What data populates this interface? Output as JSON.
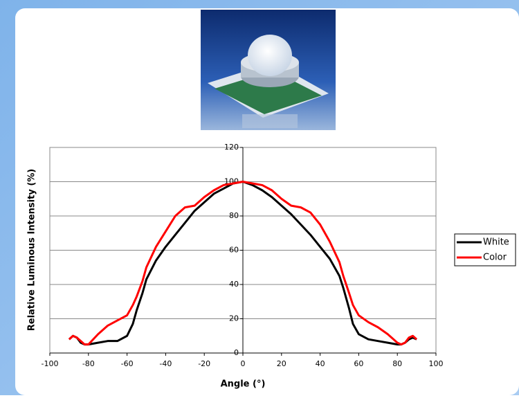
{
  "chart_data": {
    "type": "line",
    "x_label": "Angle (°)",
    "y_label": "Relative Luminous Intensity (%)",
    "x": [
      -90,
      -88,
      -86,
      -84,
      -82,
      -80,
      -75,
      -70,
      -65,
      -60,
      -57,
      -55,
      -52,
      -50,
      -45,
      -40,
      -35,
      -30,
      -25,
      -20,
      -15,
      -10,
      -5,
      0,
      5,
      10,
      15,
      20,
      25,
      30,
      35,
      40,
      45,
      50,
      52,
      55,
      57,
      60,
      65,
      70,
      75,
      80,
      82,
      84,
      86,
      88,
      90
    ],
    "series": [
      {
        "name": "White",
        "color": "#000000",
        "values": [
          8,
          10,
          9,
          6,
          5,
          5,
          6,
          7,
          7,
          10,
          17,
          25,
          35,
          43,
          54,
          62,
          69,
          76,
          83,
          88,
          93,
          96,
          99,
          100,
          98,
          95,
          91,
          86,
          81,
          75,
          69,
          62,
          55,
          45,
          38,
          26,
          17,
          11,
          8,
          7,
          6,
          5,
          5,
          6,
          8,
          9,
          8
        ]
      },
      {
        "name": "Color",
        "color": "#ff0000",
        "values": [
          8,
          10,
          9,
          7,
          5,
          5,
          11,
          16,
          19,
          22,
          28,
          33,
          42,
          50,
          62,
          71,
          80,
          85,
          86,
          91,
          95,
          98,
          99,
          100,
          99,
          98,
          95,
          90,
          86,
          85,
          82,
          75,
          65,
          53,
          45,
          35,
          28,
          22,
          18,
          15,
          11,
          6,
          5,
          6,
          9,
          10,
          8
        ]
      }
    ],
    "xlim": [
      -100,
      100
    ],
    "xticks": [
      -100,
      -80,
      -60,
      -40,
      -20,
      0,
      20,
      40,
      60,
      80,
      100
    ],
    "ylim": [
      0,
      120
    ],
    "yticks": [
      0,
      20,
      40,
      60,
      80,
      100,
      120
    ],
    "grid": true,
    "legend": "right"
  }
}
